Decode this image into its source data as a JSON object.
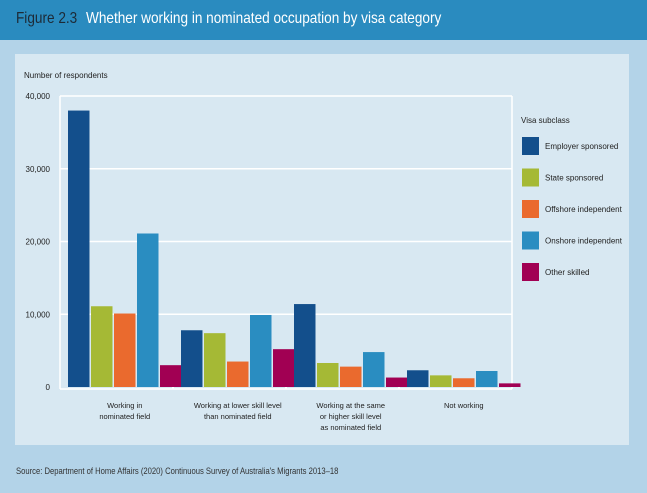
{
  "header": {
    "figure_number": "Figure 2.3",
    "title": "Whether working in nominated occupation by visa category"
  },
  "source": "Source: Department of Home Affairs (2020) Continuous Survey of Australia's Migrants 2013–18",
  "chart_data": {
    "type": "bar",
    "title": "Whether working in nominated occupation by visa category",
    "ylabel": "Number of respondents",
    "xlabel": "",
    "ylim": [
      0,
      40000
    ],
    "yticks": [
      0,
      10000,
      20000,
      30000,
      40000
    ],
    "ytick_labels": [
      "0",
      "10,000",
      "20,000",
      "30,000",
      "40,000"
    ],
    "grid": true,
    "legend_title": "Visa subclass",
    "legend_position": "right",
    "categories": [
      [
        "Working in",
        "nominated field"
      ],
      [
        "Working at lower skill level",
        "than nominated field"
      ],
      [
        "Working at the same",
        "or higher skill level",
        "as nominated field"
      ],
      [
        "Not working"
      ]
    ],
    "series": [
      {
        "name": "Employer sponsored",
        "color": "#134f8c",
        "values": [
          38000,
          7800,
          11400,
          2300
        ]
      },
      {
        "name": "State sponsored",
        "color": "#a5b935",
        "values": [
          11100,
          7400,
          3300,
          1600
        ]
      },
      {
        "name": "Offshore independent",
        "color": "#ea6a2e",
        "values": [
          10100,
          3500,
          2800,
          1200
        ]
      },
      {
        "name": "Onshore independent",
        "color": "#2a8dc1",
        "values": [
          21100,
          9900,
          4800,
          2200
        ]
      },
      {
        "name": "Other skilled",
        "color": "#a10053",
        "values": [
          3000,
          5200,
          1300,
          500
        ]
      }
    ]
  }
}
